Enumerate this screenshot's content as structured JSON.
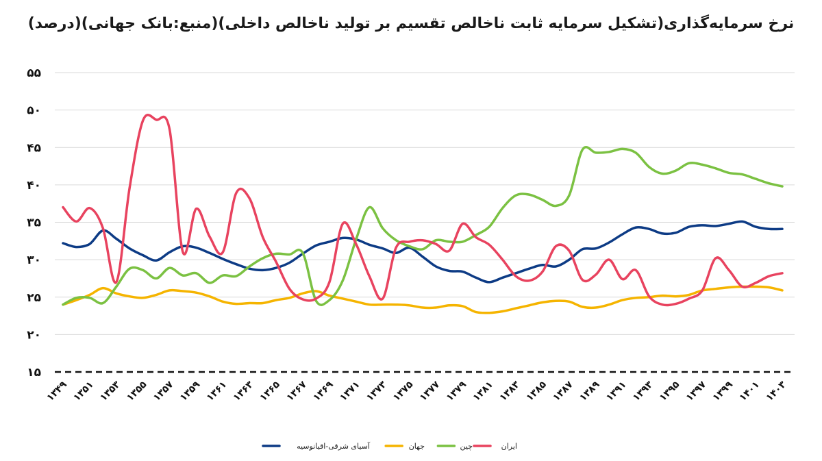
{
  "chart_data": {
    "type": "line",
    "title": "نرخ سرمایه‌گذاری(تشکیل سرمایه ثابت ناخالص تقسیم بر تولید ناخالص داخلی)(منبع:بانک جهانی)(درصد)",
    "xlabel": "",
    "ylabel": "",
    "ylim": [
      15,
      55
    ],
    "yticks": [
      "۱۵",
      "۲۰",
      "۲۵",
      "۳۰",
      "۳۵",
      "۴۰",
      "۴۵",
      "۵۰",
      "۵۵"
    ],
    "x_labels": [
      "۱۳۴۹",
      "۱۳۵۱",
      "۱۳۵۳",
      "۱۳۵۵",
      "۱۳۵۷",
      "۱۳۵۹",
      "۱۳۶۱",
      "۱۳۶۳",
      "۱۳۶۵",
      "۱۳۶۷",
      "۱۳۶۹",
      "۱۳۷۱",
      "۱۳۷۳",
      "۱۳۷۵",
      "۱۳۷۷",
      "۱۳۷۹",
      "۱۳۸۱",
      "۱۳۸۳",
      "۱۳۸۵",
      "۱۳۸۷",
      "۱۳۸۹",
      "۱۳۹۱",
      "۱۳۹۳",
      "۱۳۹۵",
      "۱۳۹۷",
      "۱۳۹۹",
      "۱۴۰۱",
      "۱۴۰۳"
    ],
    "x": [
      1349,
      1350,
      1351,
      1352,
      1353,
      1354,
      1355,
      1356,
      1357,
      1358,
      1359,
      1360,
      1361,
      1362,
      1363,
      1364,
      1365,
      1366,
      1367,
      1368,
      1369,
      1370,
      1371,
      1372,
      1373,
      1374,
      1375,
      1376,
      1377,
      1378,
      1379,
      1380,
      1381,
      1382,
      1383,
      1384,
      1385,
      1386,
      1387,
      1388,
      1389,
      1390,
      1391,
      1392,
      1393,
      1394,
      1395,
      1396,
      1397,
      1398,
      1399,
      1400,
      1401,
      1402,
      1403
    ],
    "grid": true,
    "legend_position": "bottom",
    "series": [
      {
        "name": "آسیای شرقی-اقیانوسیه",
        "color": "#0d3b85",
        "values": [
          32.2,
          31.7,
          32.1,
          33.9,
          32.8,
          31.5,
          30.6,
          29.9,
          31.0,
          31.8,
          31.6,
          30.9,
          30.1,
          29.4,
          28.8,
          28.6,
          28.9,
          29.6,
          30.8,
          31.9,
          32.4,
          32.9,
          32.7,
          32.0,
          31.5,
          30.9,
          31.6,
          30.4,
          29.1,
          28.5,
          28.4,
          27.6,
          27.0,
          27.6,
          28.2,
          28.8,
          29.3,
          29.1,
          30.0,
          31.4,
          31.5,
          32.3,
          33.4,
          34.3,
          34.1,
          33.5,
          33.6,
          34.4,
          34.6,
          34.5,
          34.8,
          35.1,
          34.4,
          34.1,
          34.1
        ]
      },
      {
        "name": "جهان",
        "color": "#f5b400",
        "values": [
          24.0,
          24.6,
          25.3,
          26.2,
          25.5,
          25.1,
          24.9,
          25.3,
          25.9,
          25.8,
          25.6,
          25.1,
          24.4,
          24.1,
          24.2,
          24.2,
          24.6,
          24.9,
          25.5,
          25.8,
          25.2,
          24.8,
          24.4,
          24.0,
          24.0,
          24.0,
          23.9,
          23.6,
          23.6,
          23.9,
          23.8,
          23.0,
          22.9,
          23.1,
          23.5,
          23.9,
          24.3,
          24.5,
          24.4,
          23.7,
          23.6,
          24.0,
          24.6,
          24.9,
          25.0,
          25.2,
          25.1,
          25.3,
          25.9,
          26.1,
          26.3,
          26.4,
          26.4,
          26.3,
          25.9
        ]
      },
      {
        "name": "چین",
        "color": "#7bc142",
        "values": [
          24.0,
          24.9,
          24.9,
          24.2,
          26.4,
          28.8,
          28.6,
          27.5,
          28.9,
          27.9,
          28.2,
          26.9,
          27.9,
          27.8,
          29.1,
          30.2,
          30.8,
          30.7,
          30.9,
          24.5,
          24.6,
          27.2,
          32.7,
          37.0,
          34.2,
          32.6,
          31.8,
          31.4,
          32.6,
          32.4,
          32.4,
          33.3,
          34.4,
          36.9,
          38.6,
          38.7,
          38.0,
          37.2,
          38.6,
          44.7,
          44.3,
          44.4,
          44.8,
          44.3,
          42.4,
          41.5,
          41.9,
          42.9,
          42.7,
          42.2,
          41.6,
          41.4,
          40.8,
          40.2,
          39.8
        ]
      },
      {
        "name": "ایران",
        "color": "#e8435f",
        "values": [
          37.0,
          35.1,
          36.9,
          34.2,
          27.0,
          39.6,
          48.6,
          48.7,
          47.4,
          31.0,
          36.8,
          33.1,
          31.0,
          38.9,
          38.2,
          33.0,
          29.7,
          26.1,
          24.7,
          24.8,
          27.0,
          34.8,
          32.1,
          27.8,
          24.8,
          31.6,
          32.4,
          32.6,
          32.1,
          31.2,
          34.8,
          33.0,
          32.0,
          30.0,
          27.8,
          27.2,
          28.4,
          31.8,
          31.2,
          27.3,
          28.0,
          30.0,
          27.4,
          28.6,
          25.1,
          24.0,
          24.1,
          24.8,
          25.9,
          30.2,
          28.6,
          26.4,
          26.9,
          27.8,
          28.2
        ]
      }
    ]
  }
}
